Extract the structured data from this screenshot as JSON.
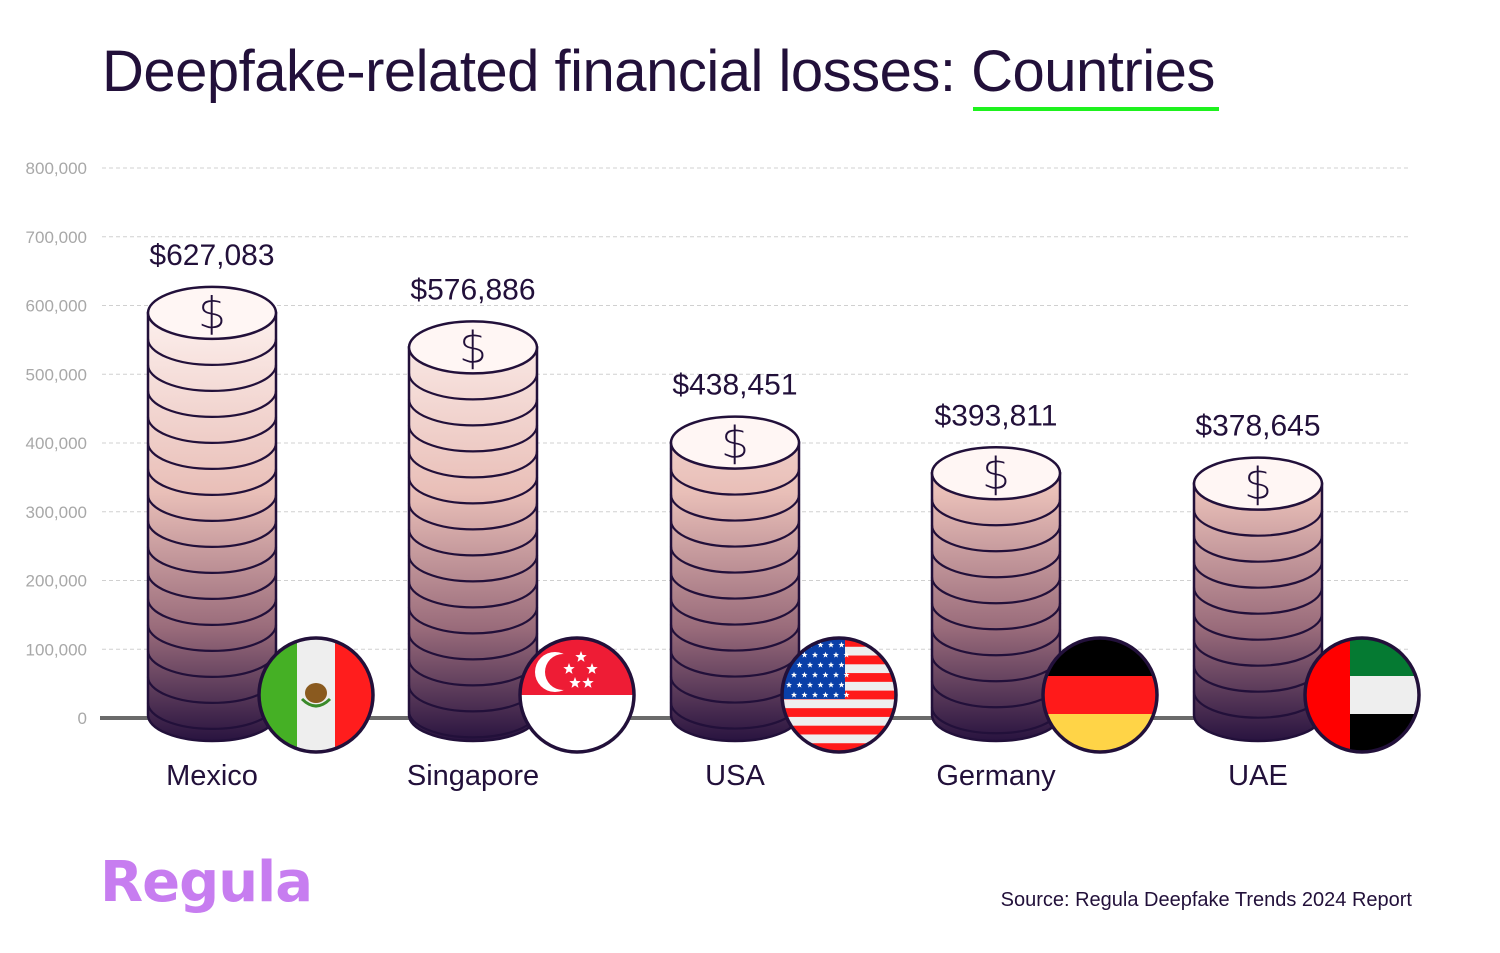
{
  "title": {
    "prefix": "Deepfake-related financial losses: ",
    "highlight": "Countries",
    "highlight_underline_color": "#1ef21e"
  },
  "colors": {
    "text": "#22103a",
    "axis_label": "#a8a8a8",
    "grid": "#d0d0d0",
    "baseline": "#6b6b6b",
    "coin_top": "#fff6f4",
    "coin_mid": "#d9a9a4",
    "coin_bottom": "#2a1440",
    "outline": "#22103a",
    "logo": "#c77df0"
  },
  "chart_data": {
    "type": "bar",
    "title": "Deepfake-related financial losses: Countries",
    "xlabel": "",
    "ylabel": "",
    "ylim": [
      0,
      800000
    ],
    "yticks": [
      0,
      100000,
      200000,
      300000,
      400000,
      500000,
      600000,
      700000,
      800000
    ],
    "ytick_labels": [
      "0",
      "100,000",
      "200,000",
      "300,000",
      "400,000",
      "500,000",
      "600,000",
      "700,000",
      "800,000"
    ],
    "grid": true,
    "categories": [
      "Mexico",
      "Singapore",
      "USA",
      "Germany",
      "UAE"
    ],
    "values": [
      627083,
      576886,
      438451,
      393811,
      378645
    ],
    "value_labels": [
      "$627,083",
      "$576,886",
      "$438,451",
      "$393,811",
      "$378,645"
    ],
    "bar_style": "stacked coins with country flag badges",
    "flags": [
      "mexico",
      "singapore",
      "usa",
      "germany",
      "uae"
    ]
  },
  "footer": {
    "logo": "Regula",
    "source": "Source: Regula Deepfake Trends 2024 Report"
  }
}
